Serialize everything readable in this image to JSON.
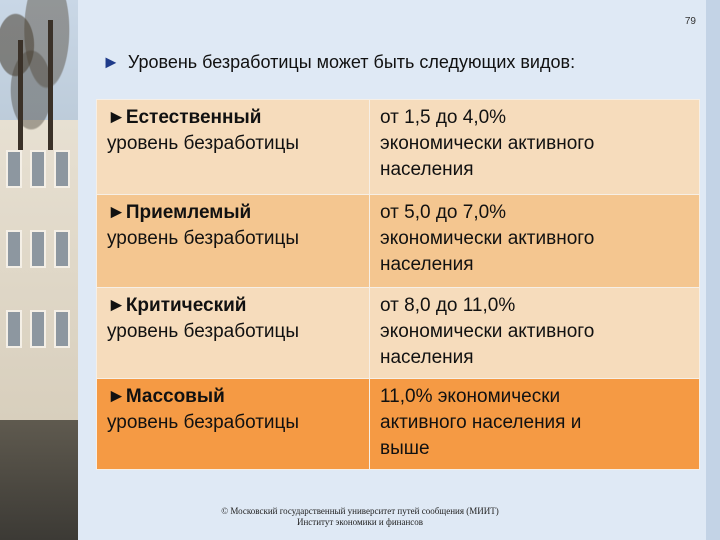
{
  "slide": {
    "page_number": "79",
    "headline": "Уровень безработицы может быть следующих видов:",
    "bullet_symbol": "►"
  },
  "table": {
    "rows": [
      {
        "kind": "Естественный",
        "kind_suffix": "уровень безработицы",
        "range_lines": [
          "от 1,5 до 4,0%",
          "экономически активного",
          "населения"
        ]
      },
      {
        "kind": "Приемлемый",
        "kind_suffix": "уровень безработицы",
        "range_lines": [
          "от 5,0 до 7,0%",
          "экономически активного",
          "населения"
        ]
      },
      {
        "kind": "Критический",
        "kind_suffix": "уровень безработицы",
        "range_lines": [
          "от 8,0 до 11,0%",
          "экономически активного",
          "населения"
        ]
      },
      {
        "kind": "Массовый",
        "kind_suffix": "уровень безработицы",
        "range_lines": [
          "11,0% экономически",
          "активного населения и",
          "выше"
        ]
      }
    ]
  },
  "footer": {
    "line1": "© Московский государственный университет путей сообщения (МИИТ)",
    "line2": "Институт экономики и финансов"
  },
  "colors": {
    "panel": "#dfe9f5",
    "row_light": "#f6dcbc",
    "row_mid": "#f4c690",
    "row_dark": "#f59a44",
    "bullet": "#1f3b8a"
  }
}
